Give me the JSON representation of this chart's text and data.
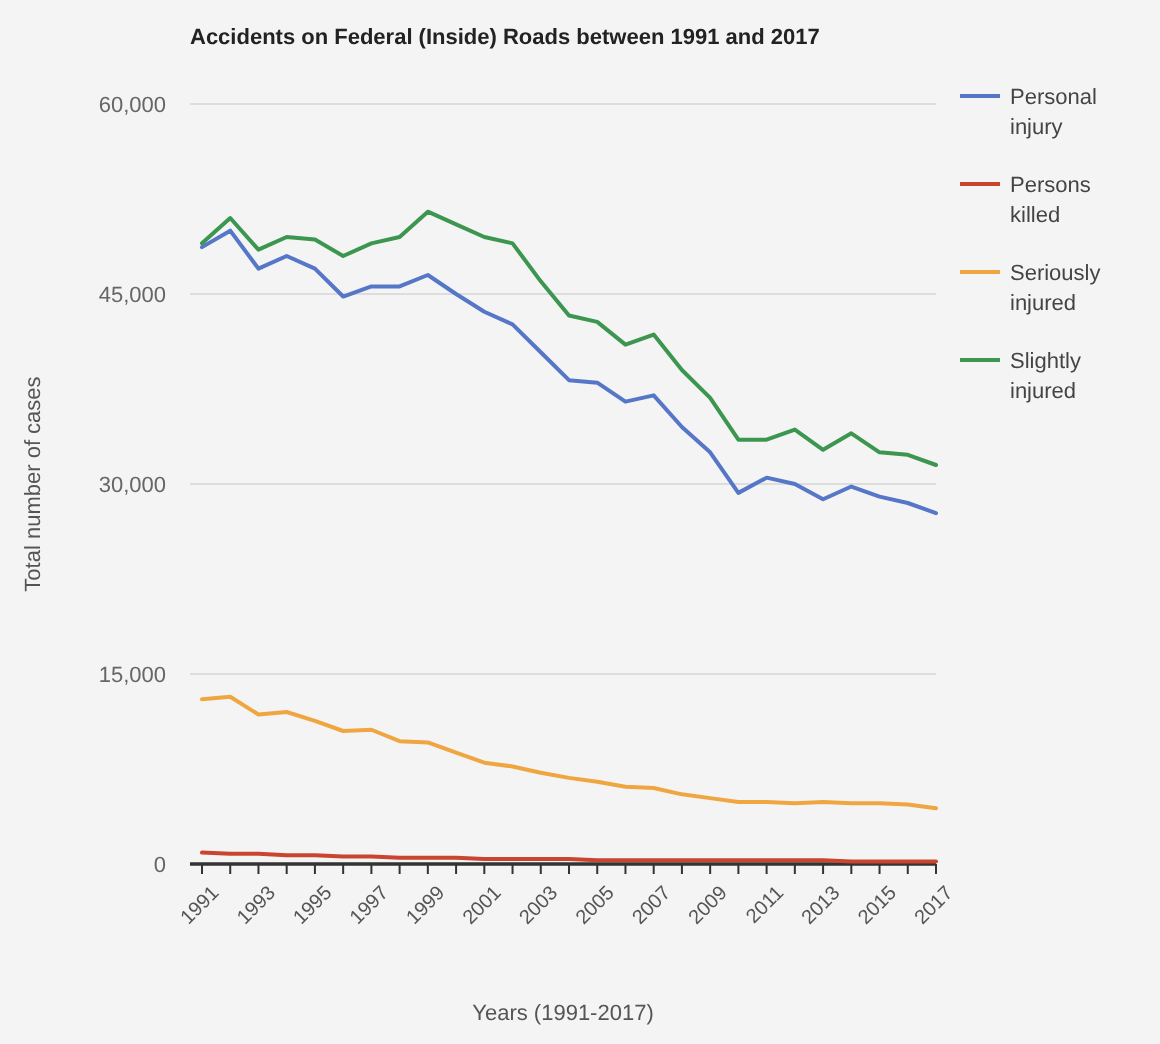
{
  "chart_data": {
    "type": "line",
    "title": "Accidents on Federal (Inside) Roads between 1991 and 2017",
    "xlabel": "Years (1991-2017)",
    "ylabel": "Total number of cases",
    "categories": [
      "1991",
      null,
      "1993",
      null,
      "1995",
      null,
      "1997",
      null,
      "1999",
      null,
      "2001",
      null,
      "2003",
      null,
      "2005",
      null,
      "2007",
      null,
      "2009",
      null,
      "2011",
      null,
      "2013",
      null,
      "2015",
      null,
      "2017"
    ],
    "series": [
      {
        "name": "Personal injury",
        "color": "#5676c8",
        "values": [
          48700,
          50000,
          47000,
          48000,
          47000,
          44800,
          45600,
          45600,
          46500,
          45000,
          43600,
          42600,
          40400,
          38200,
          38000,
          36500,
          37000,
          34500,
          32500,
          29300,
          30500,
          30000,
          28800,
          29800,
          29000,
          28500,
          27700
        ]
      },
      {
        "name": "Persons killed",
        "color": "#c9452f",
        "values": [
          900,
          800,
          800,
          700,
          700,
          600,
          600,
          500,
          500,
          500,
          400,
          400,
          400,
          400,
          300,
          300,
          300,
          300,
          300,
          300,
          300,
          300,
          300,
          200,
          200,
          200,
          200
        ]
      },
      {
        "name": "Seriously injured",
        "color": "#f0a640",
        "values": [
          13000,
          13200,
          11800,
          12000,
          11300,
          10500,
          10600,
          9700,
          9600,
          8800,
          8000,
          7700,
          7200,
          6800,
          6500,
          6100,
          6000,
          5500,
          5200,
          4900,
          4900,
          4800,
          4900,
          4800,
          4800,
          4700,
          4400
        ]
      },
      {
        "name": "Slightly injured",
        "color": "#3d9650",
        "values": [
          49000,
          51000,
          48500,
          49500,
          49300,
          48000,
          49000,
          49500,
          51500,
          50500,
          49500,
          49000,
          46000,
          43300,
          42800,
          41000,
          41800,
          39000,
          36800,
          33500,
          33500,
          34300,
          32700,
          34000,
          32500,
          32300,
          31500
        ]
      }
    ],
    "ylim": [
      0,
      60000
    ],
    "yticks": [
      {
        "value": 0,
        "label": "0"
      },
      {
        "value": 15000,
        "label": "15,000"
      },
      {
        "value": 30000,
        "label": "30,000"
      },
      {
        "value": 45000,
        "label": "45,000"
      },
      {
        "value": 60000,
        "label": "60,000"
      }
    ],
    "grid": "y",
    "legend": "right",
    "marker": "none",
    "line_style": "solid"
  }
}
